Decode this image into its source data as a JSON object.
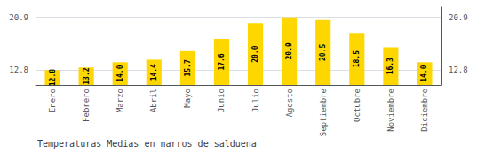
{
  "chart_data": {
    "type": "bar",
    "title": "Temperaturas Medias en narros de salduena",
    "categories": [
      "Enero",
      "Febrero",
      "Marzo",
      "Abril",
      "Mayo",
      "Junio",
      "Julio",
      "Agosto",
      "Septiembre",
      "Octubre",
      "Noviembre",
      "Diciembre"
    ],
    "values": [
      12.8,
      13.2,
      14.0,
      14.4,
      15.7,
      17.6,
      20.0,
      20.9,
      20.5,
      18.5,
      16.3,
      14.0
    ],
    "value_labels": [
      "12.8",
      "13.2",
      "14.0",
      "14.4",
      "15.7",
      "17.6",
      "20.0",
      "20.9",
      "20.5",
      "18.5",
      "16.3",
      "14.0"
    ],
    "data_labels": true,
    "color": "#FFD700",
    "ylim": [
      10.5,
      22.5
    ],
    "yticks": [
      12.8,
      20.9
    ],
    "grid": true
  }
}
